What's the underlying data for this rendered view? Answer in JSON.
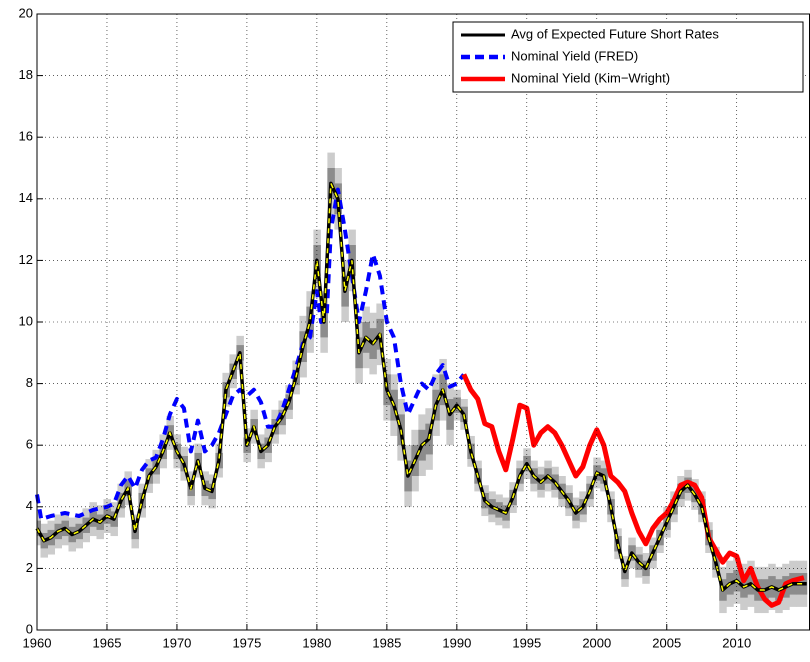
{
  "chart_data": {
    "type": "line",
    "xlim": [
      1960,
      2015.2
    ],
    "xticks": [
      1960,
      1965,
      1970,
      1975,
      1980,
      1985,
      1990,
      1995,
      2000,
      2005,
      2010
    ],
    "ylim": [
      0,
      20
    ],
    "yticks": [
      0,
      2,
      4,
      6,
      8,
      10,
      12,
      14,
      16,
      18,
      20
    ],
    "grid": true,
    "legend": "upper right",
    "bands": [
      {
        "color": "#cccccc",
        "errors": [
          0.55,
          0.55,
          0.55,
          0.55,
          0.55,
          0.55,
          0.55,
          0.55,
          0.55,
          0.55,
          0.55,
          0.55,
          0.55,
          0.55,
          0.55,
          0.55,
          0.55,
          0.55,
          0.55,
          0.55,
          0.55,
          0.55,
          0.55,
          0.55,
          0.55,
          0.55,
          0.55,
          0.55,
          0.55,
          0.55,
          0.55,
          0.55,
          0.55,
          0.55,
          0.55,
          0.55,
          0.55,
          0.55,
          1.0,
          1.0,
          1.0,
          1.0,
          1.0,
          1.0,
          1.0,
          1.0,
          1.0,
          1.0,
          1.0,
          1.0,
          1.0,
          1.0,
          1.0,
          1.0,
          1.0,
          1.0,
          1.0,
          1.0,
          1.0,
          1.0,
          0.5,
          0.5,
          0.5,
          0.5,
          0.5,
          0.5,
          0.5,
          0.5,
          0.5,
          0.5,
          0.5,
          0.5,
          0.5,
          0.5,
          0.5,
          0.5,
          0.5,
          0.5,
          0.5,
          0.5,
          0.5,
          0.5,
          0.5,
          0.5,
          0.5,
          0.5,
          0.5,
          0.5,
          0.5,
          0.5,
          0.5,
          0.5,
          0.5,
          0.5,
          0.5,
          0.5,
          0.5,
          0.5,
          0.75,
          0.75,
          0.75,
          0.75,
          0.75,
          0.75,
          0.75,
          0.75,
          0.75,
          0.75,
          0.75,
          0.75,
          0.75
        ]
      },
      {
        "color": "#8c8c8c",
        "errors": [
          0.25,
          0.25,
          0.25,
          0.25,
          0.25,
          0.25,
          0.25,
          0.25,
          0.25,
          0.25,
          0.25,
          0.25,
          0.25,
          0.25,
          0.25,
          0.25,
          0.25,
          0.25,
          0.25,
          0.25,
          0.25,
          0.25,
          0.25,
          0.25,
          0.25,
          0.25,
          0.25,
          0.25,
          0.25,
          0.25,
          0.25,
          0.25,
          0.25,
          0.25,
          0.25,
          0.25,
          0.25,
          0.25,
          0.5,
          0.5,
          0.5,
          0.5,
          0.5,
          0.5,
          0.5,
          0.5,
          0.5,
          0.5,
          0.5,
          0.5,
          0.5,
          0.5,
          0.5,
          0.5,
          0.5,
          0.5,
          0.5,
          0.5,
          0.5,
          0.5,
          0.25,
          0.25,
          0.25,
          0.25,
          0.25,
          0.25,
          0.25,
          0.25,
          0.25,
          0.25,
          0.25,
          0.25,
          0.25,
          0.25,
          0.25,
          0.25,
          0.25,
          0.25,
          0.25,
          0.25,
          0.25,
          0.25,
          0.25,
          0.25,
          0.25,
          0.25,
          0.25,
          0.25,
          0.25,
          0.25,
          0.25,
          0.25,
          0.25,
          0.25,
          0.25,
          0.25,
          0.25,
          0.25,
          0.35,
          0.35,
          0.35,
          0.35,
          0.35,
          0.35,
          0.35,
          0.35,
          0.35,
          0.35,
          0.35,
          0.35,
          0.35
        ]
      }
    ],
    "series": [
      {
        "name": "Avg of Expected Future Short Rates",
        "color": "#000000",
        "dash_color": "#ffff00",
        "x": [
          1960,
          1960.5,
          1961,
          1961.5,
          1962,
          1962.5,
          1963,
          1963.5,
          1964,
          1964.5,
          1965,
          1965.5,
          1966,
          1966.5,
          1967,
          1967.5,
          1968,
          1968.5,
          1969,
          1969.5,
          1970,
          1970.5,
          1971,
          1971.5,
          1972,
          1972.5,
          1973,
          1973.5,
          1974,
          1974.5,
          1975,
          1975.5,
          1976,
          1976.5,
          1977,
          1977.5,
          1978,
          1978.5,
          1979,
          1979.5,
          1980,
          1980.5,
          1981,
          1981.5,
          1982,
          1982.5,
          1983,
          1983.5,
          1984,
          1984.5,
          1985,
          1985.5,
          1986,
          1986.5,
          1987,
          1987.5,
          1988,
          1988.5,
          1989,
          1989.5,
          1990,
          1990.5,
          1991,
          1991.5,
          1992,
          1992.5,
          1993,
          1993.5,
          1994,
          1994.5,
          1995,
          1995.5,
          1996,
          1996.5,
          1997,
          1997.5,
          1998,
          1998.5,
          1999,
          1999.5,
          2000,
          2000.5,
          2001,
          2001.5,
          2002,
          2002.5,
          2003,
          2003.5,
          2004,
          2004.5,
          2005,
          2005.5,
          2006,
          2006.5,
          2007,
          2007.5,
          2008,
          2008.5,
          2009,
          2009.5,
          2010,
          2010.5,
          2011,
          2011.5,
          2012,
          2012.5,
          2013,
          2013.5,
          2014,
          2014.5,
          2015
        ],
        "values": [
          3.3,
          2.9,
          3.0,
          3.2,
          3.3,
          3.1,
          3.2,
          3.4,
          3.6,
          3.5,
          3.7,
          3.6,
          4.2,
          4.6,
          3.2,
          4.2,
          5.0,
          5.3,
          5.8,
          6.4,
          5.8,
          5.4,
          4.6,
          5.5,
          4.6,
          4.5,
          5.5,
          7.8,
          8.4,
          9.0,
          6.0,
          6.6,
          5.8,
          6.0,
          6.6,
          6.9,
          7.4,
          8.2,
          9.2,
          10.0,
          12.0,
          10.0,
          14.5,
          14.0,
          11.0,
          12.0,
          9.0,
          9.5,
          9.3,
          9.6,
          7.8,
          7.3,
          6.5,
          5.0,
          5.5,
          6.0,
          6.2,
          7.3,
          7.8,
          7.0,
          7.3,
          7.0,
          5.8,
          5.0,
          4.2,
          4.0,
          3.9,
          3.8,
          4.3,
          5.0,
          5.4,
          5.0,
          4.8,
          5.0,
          4.8,
          4.5,
          4.2,
          3.8,
          4.0,
          4.5,
          5.1,
          5.0,
          4.0,
          2.8,
          1.9,
          2.5,
          2.2,
          2.0,
          2.5,
          3.0,
          3.5,
          4.0,
          4.5,
          4.7,
          4.4,
          4.0,
          3.0,
          2.2,
          1.3,
          1.5,
          1.6,
          1.4,
          1.5,
          1.3,
          1.3,
          1.4,
          1.3,
          1.4,
          1.5,
          1.5,
          1.5
        ]
      },
      {
        "name": "Nominal Yield (FRED)",
        "color": "#0000ff",
        "dashed": true,
        "x": [
          1960,
          1960.3,
          1961,
          1962,
          1963,
          1964,
          1965,
          1965.5,
          1966,
          1966.5,
          1967,
          1967.5,
          1968,
          1968.5,
          1969,
          1969.5,
          1970,
          1970.5,
          1971,
          1971.5,
          1972,
          1972.5,
          1973,
          1973.5,
          1974,
          1974.5,
          1975,
          1975.5,
          1976,
          1976.5,
          1977,
          1977.5,
          1978,
          1978.5,
          1979,
          1979.5,
          1980,
          1980.3,
          1980.7,
          1981,
          1981.5,
          1982,
          1982.5,
          1983,
          1983.5,
          1984,
          1984.5,
          1985,
          1985.5,
          1986,
          1986.5,
          1987,
          1987.5,
          1988,
          1988.5,
          1989,
          1989.5,
          1990,
          1990.5
        ],
        "values": [
          4.4,
          3.6,
          3.7,
          3.8,
          3.7,
          3.9,
          4.0,
          4.1,
          4.7,
          5.0,
          4.6,
          5.2,
          5.5,
          5.6,
          6.2,
          7.0,
          7.5,
          7.2,
          5.8,
          6.8,
          5.8,
          6.0,
          6.4,
          7.0,
          7.6,
          7.8,
          7.6,
          7.8,
          7.4,
          6.6,
          6.6,
          7.1,
          7.8,
          8.5,
          9.3,
          9.5,
          11.0,
          10.0,
          10.2,
          13.0,
          14.3,
          13.0,
          11.5,
          10.0,
          11.0,
          12.2,
          11.5,
          10.0,
          9.5,
          8.0,
          7.0,
          7.5,
          8.0,
          7.8,
          8.3,
          8.6,
          7.9,
          8.0,
          8.3
        ]
      },
      {
        "name": "Nominal Yield (Kim−Wright)",
        "color": "#ff0000",
        "x": [
          1990.5,
          1991,
          1991.5,
          1992,
          1992.5,
          1993,
          1993.5,
          1994,
          1994.5,
          1995,
          1995.5,
          1996,
          1996.5,
          1997,
          1997.5,
          1998,
          1998.5,
          1999,
          1999.5,
          2000,
          2000.5,
          2001,
          2001.5,
          2002,
          2002.5,
          2003,
          2003.5,
          2004,
          2004.5,
          2005,
          2005.5,
          2006,
          2006.5,
          2007,
          2007.5,
          2008,
          2008.5,
          2009,
          2009.5,
          2010,
          2010.5,
          2011,
          2011.5,
          2012,
          2012.5,
          2013,
          2013.5,
          2014,
          2014.8
        ],
        "values": [
          8.3,
          7.8,
          7.5,
          6.7,
          6.6,
          5.8,
          5.2,
          6.2,
          7.3,
          7.2,
          6.0,
          6.4,
          6.6,
          6.4,
          6.0,
          5.5,
          5.0,
          5.3,
          6.0,
          6.5,
          6.0,
          5.0,
          4.8,
          4.5,
          3.8,
          3.2,
          2.8,
          3.3,
          3.6,
          3.8,
          4.2,
          4.7,
          4.8,
          4.7,
          4.3,
          3.0,
          2.6,
          2.2,
          2.5,
          2.4,
          1.6,
          2.0,
          1.4,
          1.0,
          0.8,
          0.9,
          1.5,
          1.6,
          1.7
        ]
      }
    ]
  }
}
